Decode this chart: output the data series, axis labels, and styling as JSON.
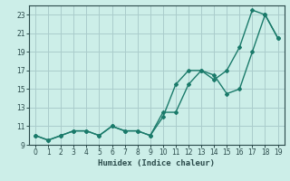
{
  "title": "",
  "xlabel": "Humidex (Indice chaleur)",
  "ylabel": "",
  "background_color": "#cceee8",
  "grid_color": "#aacccc",
  "line_color": "#1a7a6a",
  "x_line1": [
    0,
    1,
    2,
    3,
    4,
    5,
    6,
    7,
    8,
    9,
    10,
    11,
    12,
    13,
    14,
    15,
    16,
    17,
    18,
    19
  ],
  "y_line1": [
    10,
    9.5,
    10,
    10.5,
    10.5,
    10,
    11,
    10.5,
    10.5,
    10,
    12,
    15.5,
    17,
    17,
    16.5,
    14.5,
    15,
    19,
    23,
    20.5
  ],
  "x_line2": [
    0,
    1,
    2,
    3,
    4,
    5,
    6,
    7,
    8,
    9,
    10,
    11,
    12,
    13,
    14,
    15,
    16,
    17,
    18,
    19
  ],
  "y_line2": [
    10,
    9.5,
    10,
    10.5,
    10.5,
    10,
    11,
    10.5,
    10.5,
    10,
    12.5,
    12.5,
    15.5,
    17,
    16,
    17,
    19.5,
    23.5,
    23,
    20.5
  ],
  "xlim": [
    -0.5,
    19.5
  ],
  "ylim": [
    9,
    24
  ],
  "yticks": [
    9,
    11,
    13,
    15,
    17,
    19,
    21,
    23
  ],
  "xticks": [
    0,
    1,
    2,
    3,
    4,
    5,
    6,
    7,
    8,
    9,
    10,
    11,
    12,
    13,
    14,
    15,
    16,
    17,
    18,
    19
  ],
  "font_color": "#2a4a4a",
  "marker": "D",
  "markersize": 2.0,
  "linewidth": 1.0
}
